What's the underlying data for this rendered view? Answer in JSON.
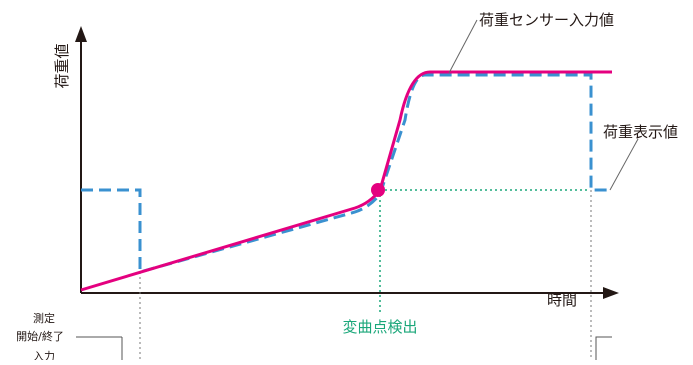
{
  "labels": {
    "y_axis": "荷重値",
    "x_axis": "時間",
    "sensor_input": "荷重センサー入力値",
    "display_value": "荷重表示値",
    "inflection_detect": "変曲点検出",
    "measure_line1": "測定",
    "measure_line2": "開始/終了",
    "measure_line3": "入力"
  },
  "colors": {
    "sensor_line": "#e4007f",
    "display_line": "#3a91d0",
    "detect_marker": "#1aa77a",
    "axis": "#231815",
    "leader": "#666666"
  }
}
